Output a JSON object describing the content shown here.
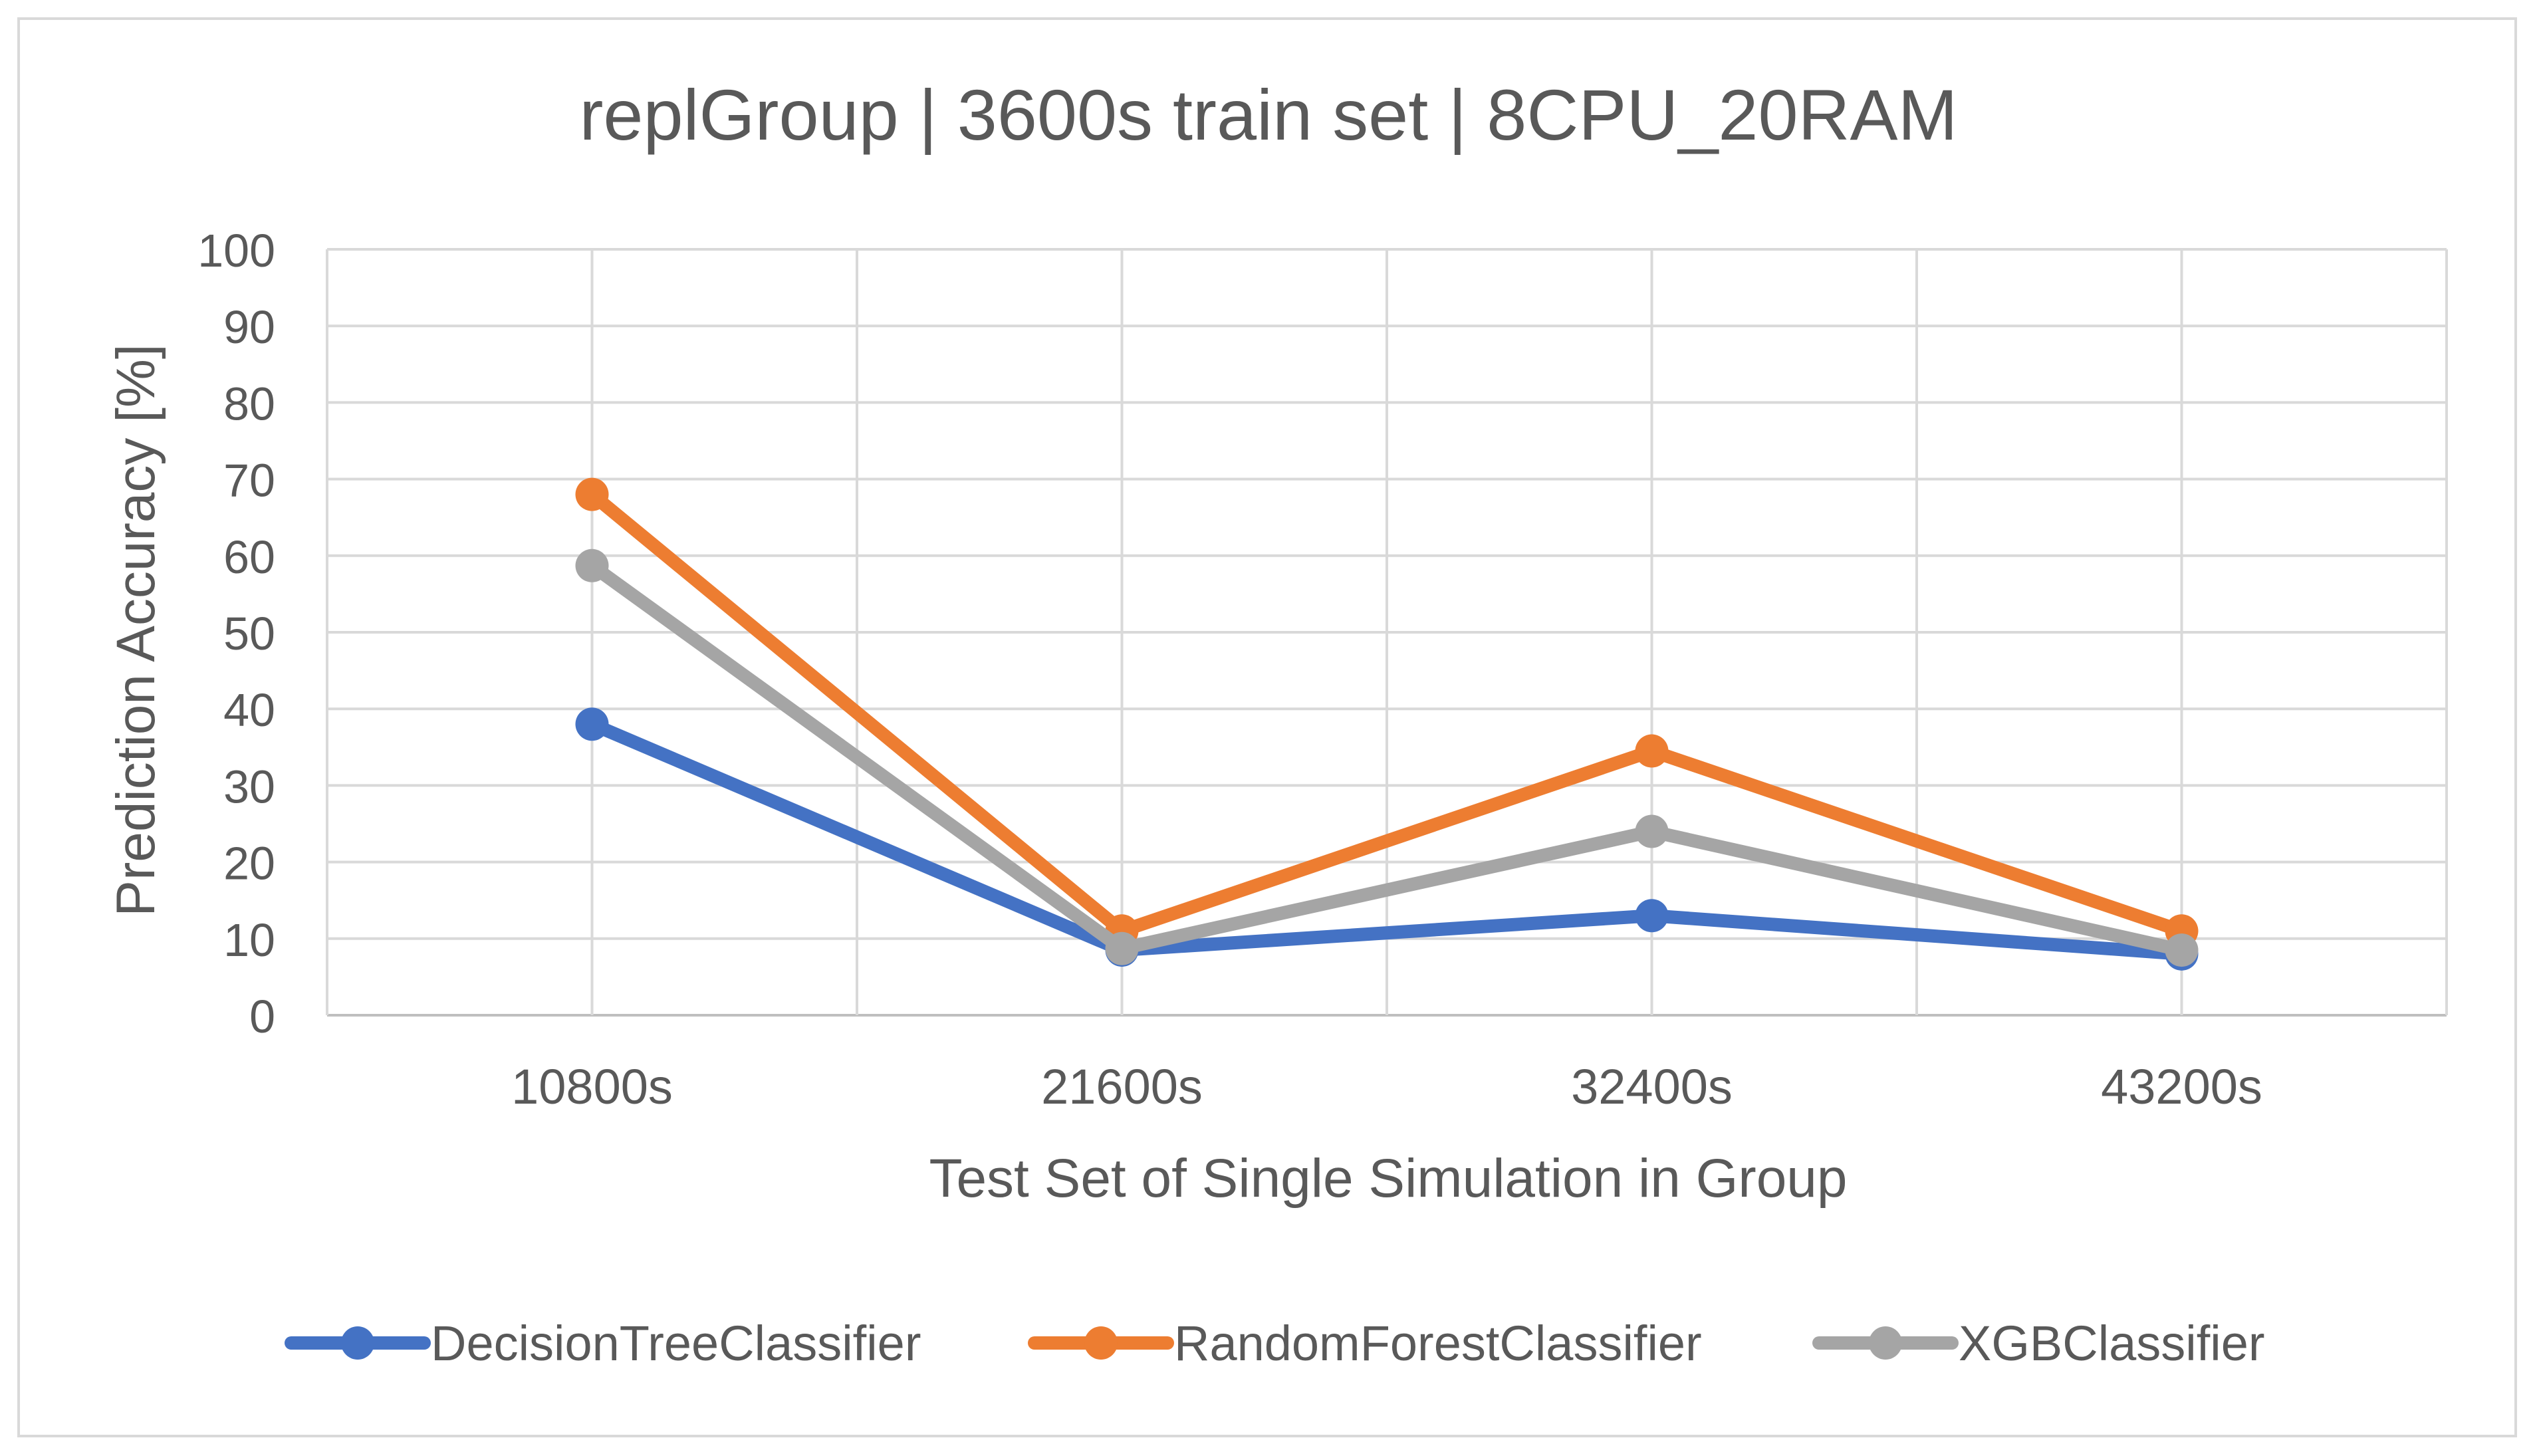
{
  "chart_data": {
    "type": "line",
    "title": "replGroup | 3600s train set | 8CPU_20RAM",
    "xlabel": "Test Set of Single Simulation in Group",
    "ylabel": "Prediction Accuracy [%]",
    "categories": [
      "10800s",
      "21600s",
      "32400s",
      "43200s"
    ],
    "ylim": [
      0,
      100
    ],
    "yticks": [
      0,
      10,
      20,
      30,
      40,
      50,
      60,
      70,
      80,
      90,
      100
    ],
    "grid": true,
    "legend": "bottom",
    "series": [
      {
        "name": "DecisionTreeClassifier",
        "color": "#4472c4",
        "values": [
          38,
          8.5,
          13,
          8
        ]
      },
      {
        "name": "RandomForestClassifier",
        "color": "#ed7d31",
        "values": [
          68,
          11,
          34.5,
          11
        ]
      },
      {
        "name": "XGBClassifier",
        "color": "#a5a5a5",
        "values": [
          58.7,
          8.7,
          24,
          8.5
        ]
      }
    ]
  }
}
